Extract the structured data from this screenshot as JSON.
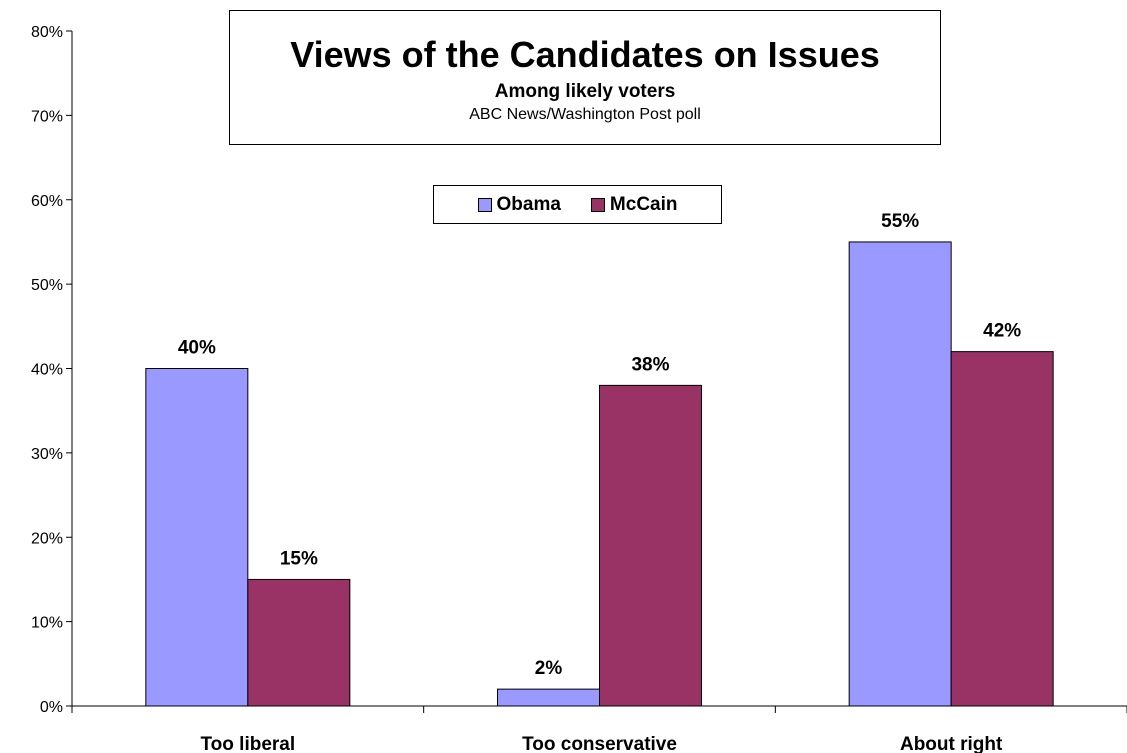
{
  "chart_data": {
    "type": "bar",
    "title": "Views of the Candidates on Issues",
    "subtitle": "Among likely voters",
    "source": "ABC News/Washington Post poll",
    "categories": [
      "Too liberal",
      "Too conservative",
      "About right"
    ],
    "series": [
      {
        "name": "Obama",
        "values": [
          40,
          2,
          55
        ],
        "labels": [
          "40%",
          "2%",
          "55%"
        ],
        "color": "#9999ff"
      },
      {
        "name": "McCain",
        "values": [
          15,
          38,
          42
        ],
        "labels": [
          "15%",
          "38%",
          "42%"
        ],
        "color": "#993366"
      }
    ],
    "ylim": [
      0,
      80
    ],
    "yticks": [
      0,
      10,
      20,
      30,
      40,
      50,
      60,
      70,
      80
    ],
    "ytick_labels": [
      "0%",
      "10%",
      "20%",
      "30%",
      "40%",
      "50%",
      "60%",
      "70%",
      "80%"
    ],
    "grid": false,
    "legend_position": "top-center"
  }
}
